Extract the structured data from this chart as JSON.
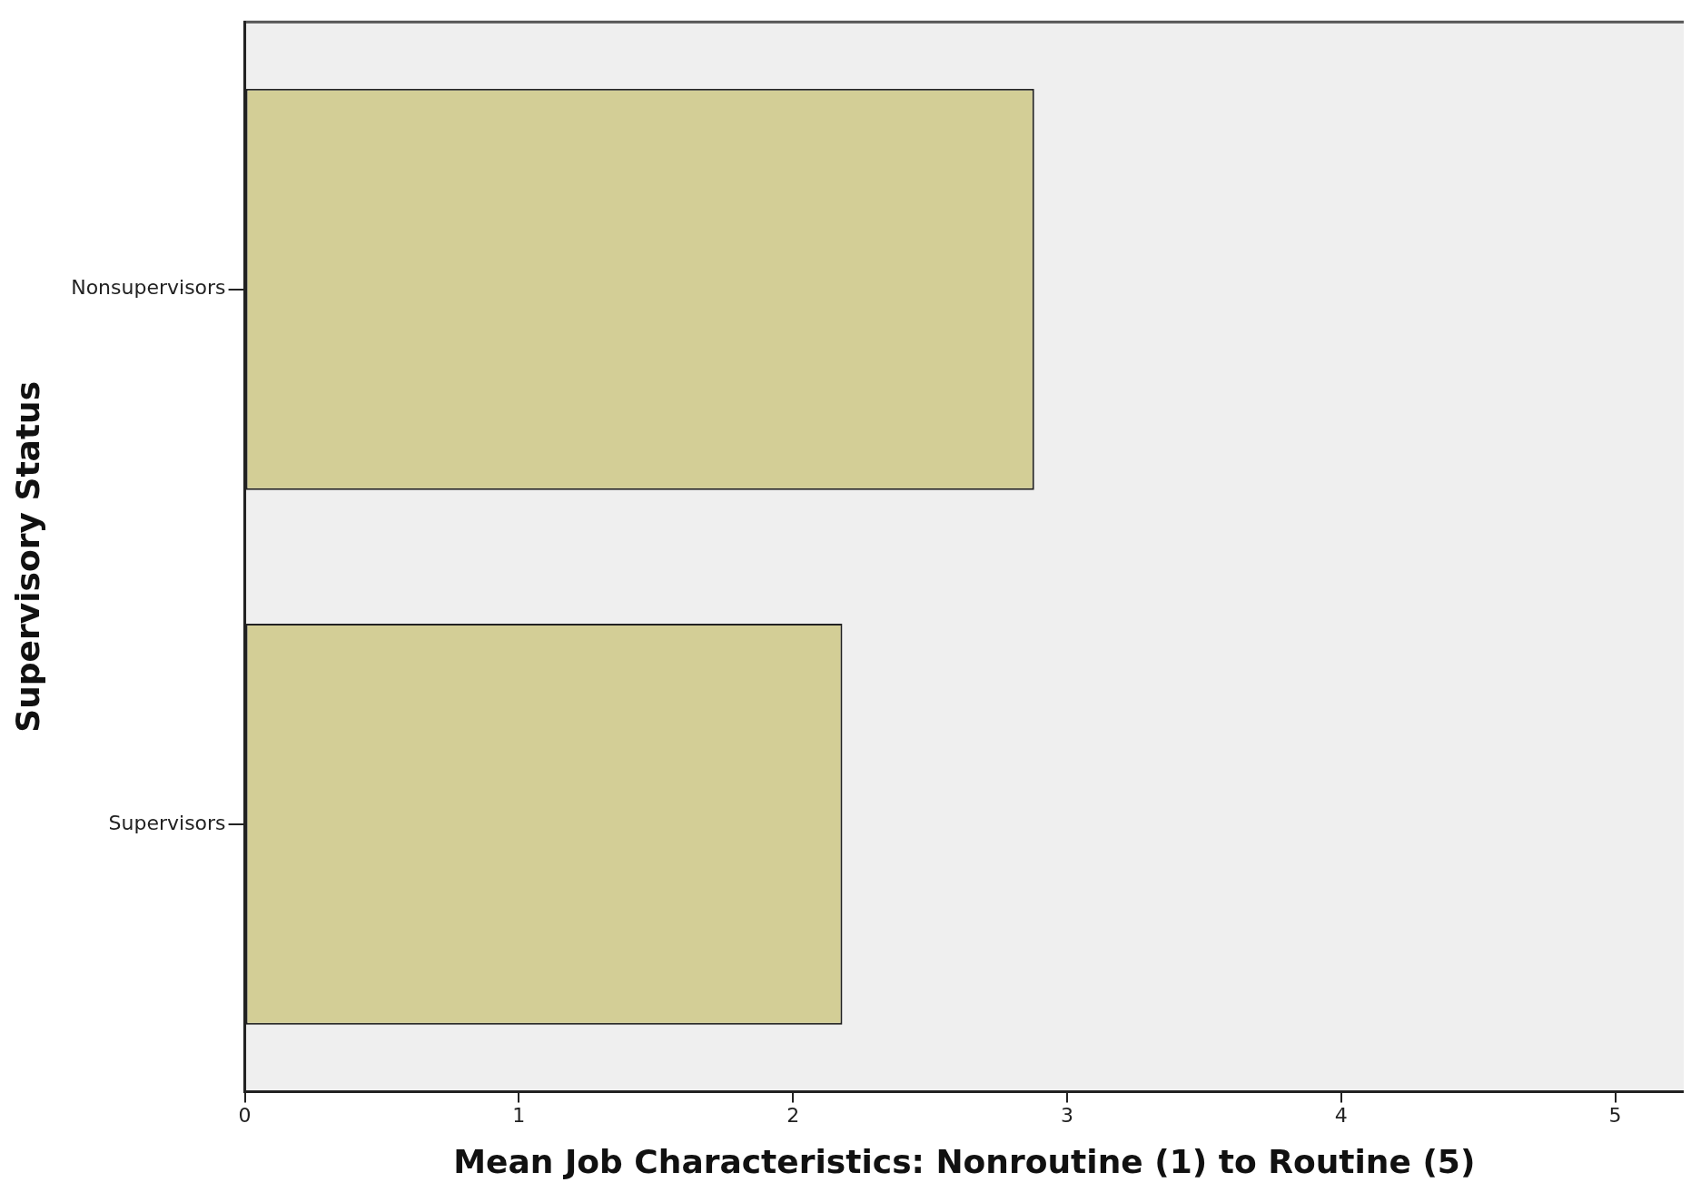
{
  "chart_data": {
    "type": "bar",
    "orientation": "horizontal",
    "xlabel": "Mean Job Characteristics: Nonroutine (1) to Routine (5)",
    "ylabel": "Supervisory Status",
    "categories": [
      "Nonsupervisors",
      "Supervisors"
    ],
    "series": [
      {
        "color": "#d3ce96",
        "values": [
          2.88,
          2.18
        ]
      }
    ],
    "xlim": [
      0,
      5.25
    ],
    "xticks": [
      0,
      1,
      2,
      3,
      4,
      5
    ],
    "grid": false,
    "legend": false
  }
}
